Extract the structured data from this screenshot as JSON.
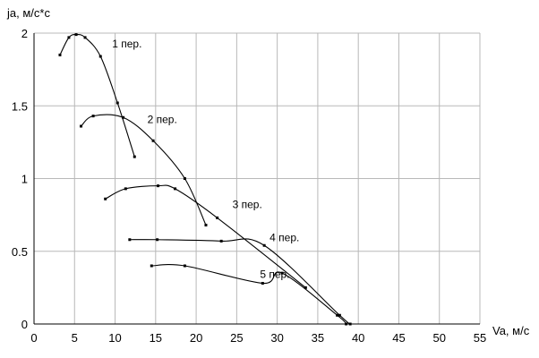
{
  "chart_data": {
    "type": "line",
    "title": "",
    "xlabel": "Va, м/с",
    "ylabel": "ja, м/с*с",
    "xlim": [
      0,
      55
    ],
    "ylim": [
      0,
      2
    ],
    "x_ticks": [
      "0",
      "5",
      "10",
      "15",
      "20",
      "25",
      "30",
      "35",
      "40",
      "45",
      "50",
      "55"
    ],
    "y_ticks": [
      "0",
      "0.5",
      "1",
      "1.5",
      "2"
    ],
    "grid": true,
    "legend": "none",
    "series": [
      {
        "name": "1 пер.",
        "points": [
          [
            3.2,
            1.85
          ],
          [
            4.3,
            1.97
          ],
          [
            5.2,
            1.99
          ],
          [
            6.3,
            1.97
          ],
          [
            8.2,
            1.84
          ],
          [
            10.3,
            1.52
          ],
          [
            12.4,
            1.15
          ]
        ]
      },
      {
        "name": "2 пер.",
        "points": [
          [
            5.8,
            1.36
          ],
          [
            7.3,
            1.43
          ],
          [
            11.0,
            1.42
          ],
          [
            14.7,
            1.26
          ],
          [
            18.6,
            1.0
          ],
          [
            21.2,
            0.68
          ]
        ]
      },
      {
        "name": "3 пер.",
        "points": [
          [
            8.8,
            0.86
          ],
          [
            11.3,
            0.93
          ],
          [
            15.3,
            0.95
          ],
          [
            17.4,
            0.93
          ],
          [
            22.6,
            0.73
          ],
          [
            33.5,
            0.25
          ]
        ]
      },
      {
        "name": "4 пер.",
        "points": [
          [
            11.8,
            0.58
          ],
          [
            15.2,
            0.58
          ],
          [
            23.1,
            0.57
          ],
          [
            28.4,
            0.54
          ],
          [
            37.7,
            0.06
          ],
          [
            39.0,
            0.0
          ]
        ]
      },
      {
        "name": "5 пер.",
        "points": [
          [
            14.5,
            0.4
          ],
          [
            18.6,
            0.4
          ],
          [
            28.2,
            0.28
          ],
          [
            30.6,
            0.35
          ],
          [
            37.4,
            0.06
          ],
          [
            38.5,
            0.0
          ]
        ]
      }
    ]
  }
}
